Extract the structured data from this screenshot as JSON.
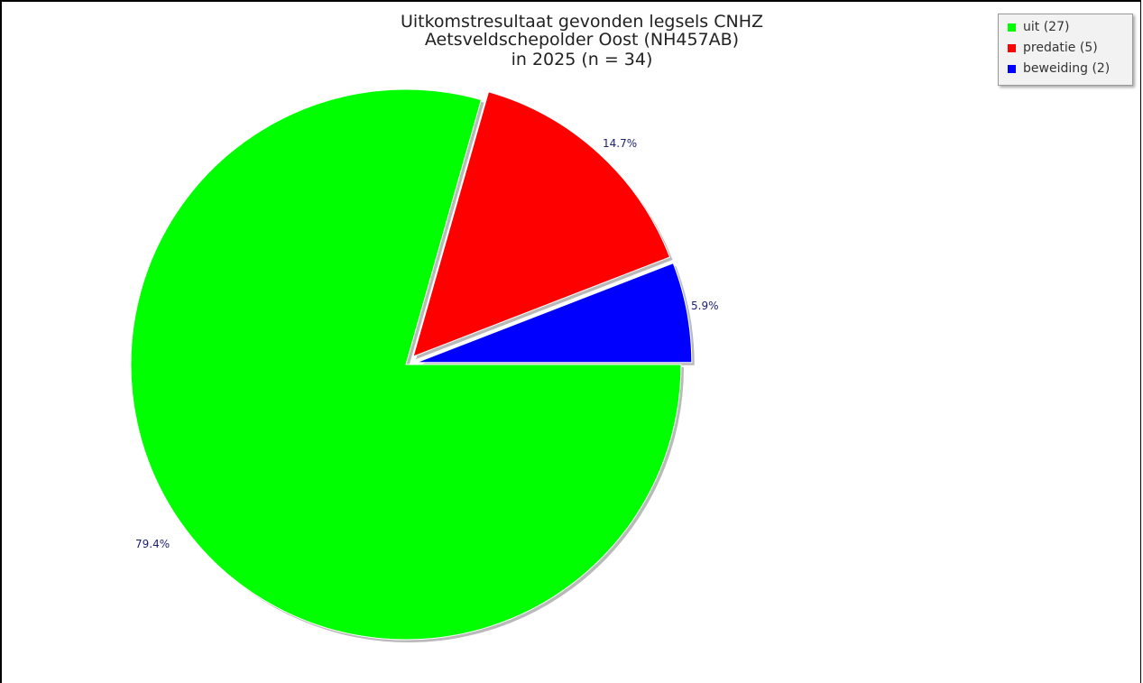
{
  "chart_data": {
    "type": "pie",
    "title_lines": [
      "Uitkomstresultaat gevonden legsels CNHZ",
      "Aetsveldschepolder Oost (NH457AB)",
      "in 2025 (n = 34)"
    ],
    "slices": [
      {
        "label": "uit (27)",
        "value": 27,
        "percent_label": "79.4%",
        "color": "#00ff00"
      },
      {
        "label": "predatie (5)",
        "value": 5,
        "percent_label": "14.7%",
        "color": "#ff0000"
      },
      {
        "label": "beweiding (2)",
        "value": 2,
        "percent_label": "5.9%",
        "color": "#0000ff"
      }
    ],
    "legend_position": "top-right"
  }
}
